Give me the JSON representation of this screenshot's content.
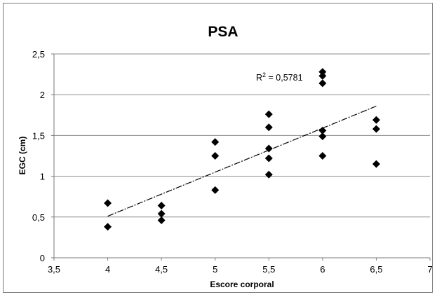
{
  "chart_data": {
    "type": "scatter",
    "title": "PSA",
    "xlabel": "Escore corporal",
    "ylabel": "EGC (cm)",
    "xlim": [
      3.5,
      7
    ],
    "ylim": [
      0,
      2.5
    ],
    "x_ticks": [
      "3,5",
      "4",
      "4,5",
      "5",
      "5,5",
      "6",
      "6,5",
      "7"
    ],
    "y_ticks": [
      "0",
      "0,5",
      "1",
      "1,5",
      "2",
      "2,5"
    ],
    "grid": true,
    "grid_axis": "y",
    "marker": "diamond",
    "marker_color": "#000000",
    "points": [
      {
        "x": 4,
        "y": 0.67
      },
      {
        "x": 4,
        "y": 0.38
      },
      {
        "x": 4.5,
        "y": 0.64
      },
      {
        "x": 4.5,
        "y": 0.54
      },
      {
        "x": 4.5,
        "y": 0.46
      },
      {
        "x": 5,
        "y": 1.42
      },
      {
        "x": 5,
        "y": 1.25
      },
      {
        "x": 5,
        "y": 0.83
      },
      {
        "x": 5.5,
        "y": 1.76
      },
      {
        "x": 5.5,
        "y": 1.6
      },
      {
        "x": 5.5,
        "y": 1.34
      },
      {
        "x": 5.5,
        "y": 1.22
      },
      {
        "x": 5.5,
        "y": 1.02
      },
      {
        "x": 6,
        "y": 2.28
      },
      {
        "x": 6,
        "y": 2.23
      },
      {
        "x": 6,
        "y": 2.14
      },
      {
        "x": 6,
        "y": 1.56
      },
      {
        "x": 6,
        "y": 1.49
      },
      {
        "x": 6,
        "y": 1.25
      },
      {
        "x": 6.5,
        "y": 1.69
      },
      {
        "x": 6.5,
        "y": 1.58
      },
      {
        "x": 6.5,
        "y": 1.15
      }
    ],
    "trendline": {
      "type": "linear",
      "style": "dashed",
      "from": {
        "x": 4,
        "y": 0.51
      },
      "to": {
        "x": 6.5,
        "y": 1.86
      },
      "annotation_base": "R",
      "annotation_sup": "2",
      "annotation_rest": " = 0,5781"
    }
  }
}
